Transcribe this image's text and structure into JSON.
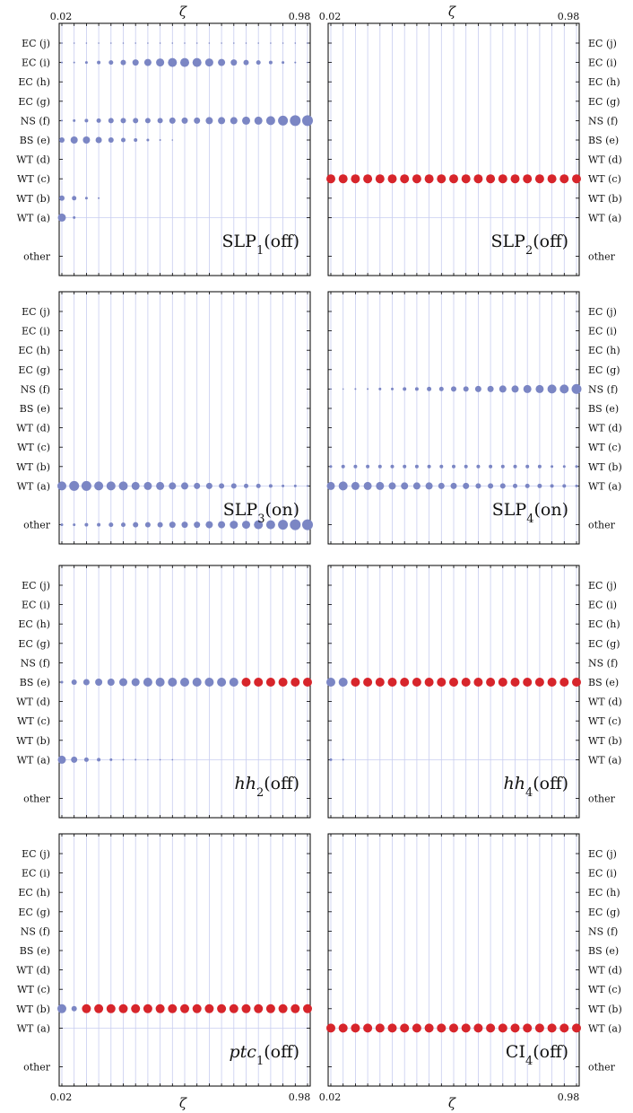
{
  "chart_data": {
    "type": "scatter",
    "xlabel": "ζ",
    "xlim": [
      0.02,
      0.98
    ],
    "x_tick_labels": [
      "0.02",
      "0.98"
    ],
    "x": [
      0.02,
      0.05,
      0.1,
      0.15,
      0.2,
      0.25,
      0.3,
      0.35,
      0.4,
      0.45,
      0.5,
      0.55,
      0.6,
      0.65,
      0.7,
      0.75,
      0.8,
      0.85,
      0.9,
      0.95,
      0.98
    ],
    "categories": [
      "EC (j)",
      "EC (i)",
      "EC (h)",
      "EC (g)",
      "NS (f)",
      "BS (e)",
      "WT (d)",
      "WT (c)",
      "WT (b)",
      "WT (a)",
      "other"
    ],
    "grid": true,
    "colors": {
      "blue": "#7b86c4",
      "red": "#d7252b",
      "grid": "#c8cdf0"
    },
    "panels": [
      {
        "title": {
          "main": "SLP",
          "sub": "1",
          "suffix": "(off)",
          "italic": false
        },
        "series": [
          {
            "category": "EC (j)",
            "color": "blue",
            "sizes": [
              0.8,
              0.8,
              0.8,
              0.8,
              0.8,
              0.8,
              0.8,
              0.8,
              0.8,
              0.8,
              0.8,
              0.8,
              0.8,
              0.8,
              0.8,
              0.8,
              0.8,
              0.8,
              0.8,
              0.8,
              0.8
            ]
          },
          {
            "category": "EC (i)",
            "color": "blue",
            "sizes": [
              1,
              1,
              1.5,
              2,
              2.5,
              3,
              3.5,
              4,
              4.5,
              5,
              5,
              5,
              4.5,
              4,
              3.5,
              3,
              2.5,
              2,
              1.5,
              1,
              0.8
            ]
          },
          {
            "category": "NS (f)",
            "color": "blue",
            "sizes": [
              1,
              1.5,
              2,
              2.5,
              3,
              3,
              3,
              3,
              3,
              3.5,
              3.5,
              3.5,
              4,
              4,
              4,
              4.5,
              4.5,
              5,
              5.5,
              6,
              6
            ]
          },
          {
            "category": "BS (e)",
            "color": "blue",
            "sizes": [
              3,
              4,
              4,
              3.5,
              3,
              2.5,
              2,
              1.5,
              1,
              0.8,
              0,
              0,
              0,
              0,
              0,
              0,
              0,
              0,
              0,
              0,
              0
            ]
          },
          {
            "category": "WT (b)",
            "color": "blue",
            "sizes": [
              3,
              2.5,
              1.5,
              1,
              0,
              0,
              0,
              0,
              0,
              0,
              0,
              0,
              0,
              0,
              0,
              0,
              0,
              0,
              0,
              0,
              0
            ]
          },
          {
            "category": "WT (a)",
            "color": "blue",
            "sizes": [
              4.5,
              1.5,
              0,
              0,
              0,
              0,
              0,
              0,
              0,
              0,
              0,
              0,
              0,
              0,
              0,
              0,
              0,
              0,
              0,
              0,
              0
            ]
          }
        ]
      },
      {
        "title": {
          "main": "SLP",
          "sub": "2",
          "suffix": "(off)",
          "italic": false
        },
        "series": [
          {
            "category": "WT (c)",
            "color": "red",
            "sizes": [
              5,
              5,
              5,
              5,
              5,
              5,
              5,
              5,
              5,
              5,
              5,
              5,
              5,
              5,
              5,
              5,
              5,
              5,
              5,
              5,
              5
            ]
          }
        ]
      },
      {
        "title": {
          "main": "SLP",
          "sub": "3",
          "suffix": "(on)",
          "italic": false
        },
        "series": [
          {
            "category": "WT (a)",
            "color": "blue",
            "sizes": [
              5,
              5.5,
              5.5,
              5,
              5,
              5,
              4.5,
              4.5,
              4.5,
              4,
              4,
              3.5,
              3.5,
              3,
              3,
              2.5,
              2.5,
              2,
              1.5,
              1.5,
              1
            ]
          },
          {
            "category": "other",
            "color": "blue",
            "sizes": [
              1.5,
              1.5,
              2,
              2,
              2.5,
              2.5,
              3,
              3,
              3,
              3.5,
              3.5,
              3.5,
              4,
              4,
              4.5,
              4.5,
              5,
              5,
              5.5,
              6,
              6
            ]
          }
        ]
      },
      {
        "title": {
          "main": "SLP",
          "sub": "4",
          "suffix": "(on)",
          "italic": false
        },
        "series": [
          {
            "category": "NS (f)",
            "color": "blue",
            "sizes": [
              0.8,
              0.8,
              1,
              1,
              1.5,
              1.5,
              2,
              2,
              2.5,
              2.5,
              3,
              3,
              3.5,
              3.5,
              4,
              4,
              4.5,
              4.5,
              5,
              5,
              5.5
            ]
          },
          {
            "category": "WT (b)",
            "color": "blue",
            "sizes": [
              1.5,
              2,
              2,
              2,
              2,
              2,
              2,
              2,
              2,
              2,
              2,
              2,
              2,
              2,
              2,
              2,
              2,
              2,
              1.5,
              1.5,
              1.5
            ]
          },
          {
            "category": "WT (a)",
            "color": "blue",
            "sizes": [
              4.5,
              5,
              4.5,
              4.5,
              4.5,
              4,
              4,
              4,
              4,
              3.5,
              3.5,
              3.5,
              3,
              3,
              3,
              2.5,
              2.5,
              2.5,
              2,
              2,
              1.5
            ]
          }
        ]
      },
      {
        "title": {
          "main": "hh",
          "sub": "2",
          "suffix": "(off)",
          "italic": true
        },
        "series": [
          {
            "category": "BS (e)",
            "color": "blue",
            "sizes": [
              1.5,
              3,
              3.5,
              4,
              4,
              4.5,
              4.5,
              5,
              5,
              5,
              5,
              5,
              5,
              5,
              5,
              0,
              0,
              0,
              0,
              0,
              0
            ]
          },
          {
            "category": "BS (e)",
            "color": "red",
            "sizes": [
              0,
              0,
              0,
              0,
              0,
              0,
              0,
              0,
              0,
              0,
              0,
              0,
              0,
              0,
              0,
              5,
              5,
              5,
              5,
              5,
              5
            ]
          },
          {
            "category": "WT (a)",
            "color": "blue",
            "sizes": [
              4.5,
              3.5,
              2.5,
              2,
              1.5,
              1,
              1,
              0.8,
              0.8,
              0.8,
              0,
              0,
              0,
              0,
              0,
              0,
              0,
              0,
              0,
              0,
              0
            ]
          }
        ]
      },
      {
        "title": {
          "main": "hh",
          "sub": "4",
          "suffix": "(off)",
          "italic": true
        },
        "series": [
          {
            "category": "BS (e)",
            "color": "blue",
            "sizes": [
              5,
              5,
              0,
              0,
              0,
              0,
              0,
              0,
              0,
              0,
              0,
              0,
              0,
              0,
              0,
              0,
              0,
              0,
              0,
              0,
              0
            ]
          },
          {
            "category": "BS (e)",
            "color": "red",
            "sizes": [
              0,
              0,
              5,
              5,
              5,
              5,
              5,
              5,
              5,
              5,
              5,
              5,
              5,
              5,
              5,
              5,
              5,
              5,
              5,
              5,
              5
            ]
          },
          {
            "category": "WT (a)",
            "color": "blue",
            "sizes": [
              1.5,
              1,
              0,
              0,
              0,
              0,
              0,
              0,
              0,
              0,
              0,
              0,
              0,
              0,
              0,
              0,
              0,
              0,
              0,
              0,
              0
            ]
          }
        ]
      },
      {
        "title": {
          "main": "ptc",
          "sub": "1",
          "suffix": "(off)",
          "italic": true
        },
        "series": [
          {
            "category": "WT (b)",
            "color": "blue",
            "sizes": [
              5,
              3,
              0,
              0,
              0,
              0,
              0,
              0,
              0,
              0,
              0,
              0,
              0,
              0,
              0,
              0,
              0,
              0,
              0,
              0,
              0
            ]
          },
          {
            "category": "WT (b)",
            "color": "red",
            "sizes": [
              0,
              0,
              5,
              5,
              5,
              5,
              5,
              5,
              5,
              5,
              5,
              5,
              5,
              5,
              5,
              5,
              5,
              5,
              5,
              5,
              5
            ]
          }
        ]
      },
      {
        "title": {
          "main": "CI",
          "sub": "4",
          "suffix": "(off)",
          "italic": false
        },
        "series": [
          {
            "category": "WT (a)",
            "color": "red",
            "sizes": [
              5,
              5,
              5,
              5,
              5,
              5,
              5,
              5,
              5,
              5,
              5,
              5,
              5,
              5,
              5,
              5,
              5,
              5,
              5,
              5,
              5
            ]
          }
        ]
      }
    ]
  }
}
